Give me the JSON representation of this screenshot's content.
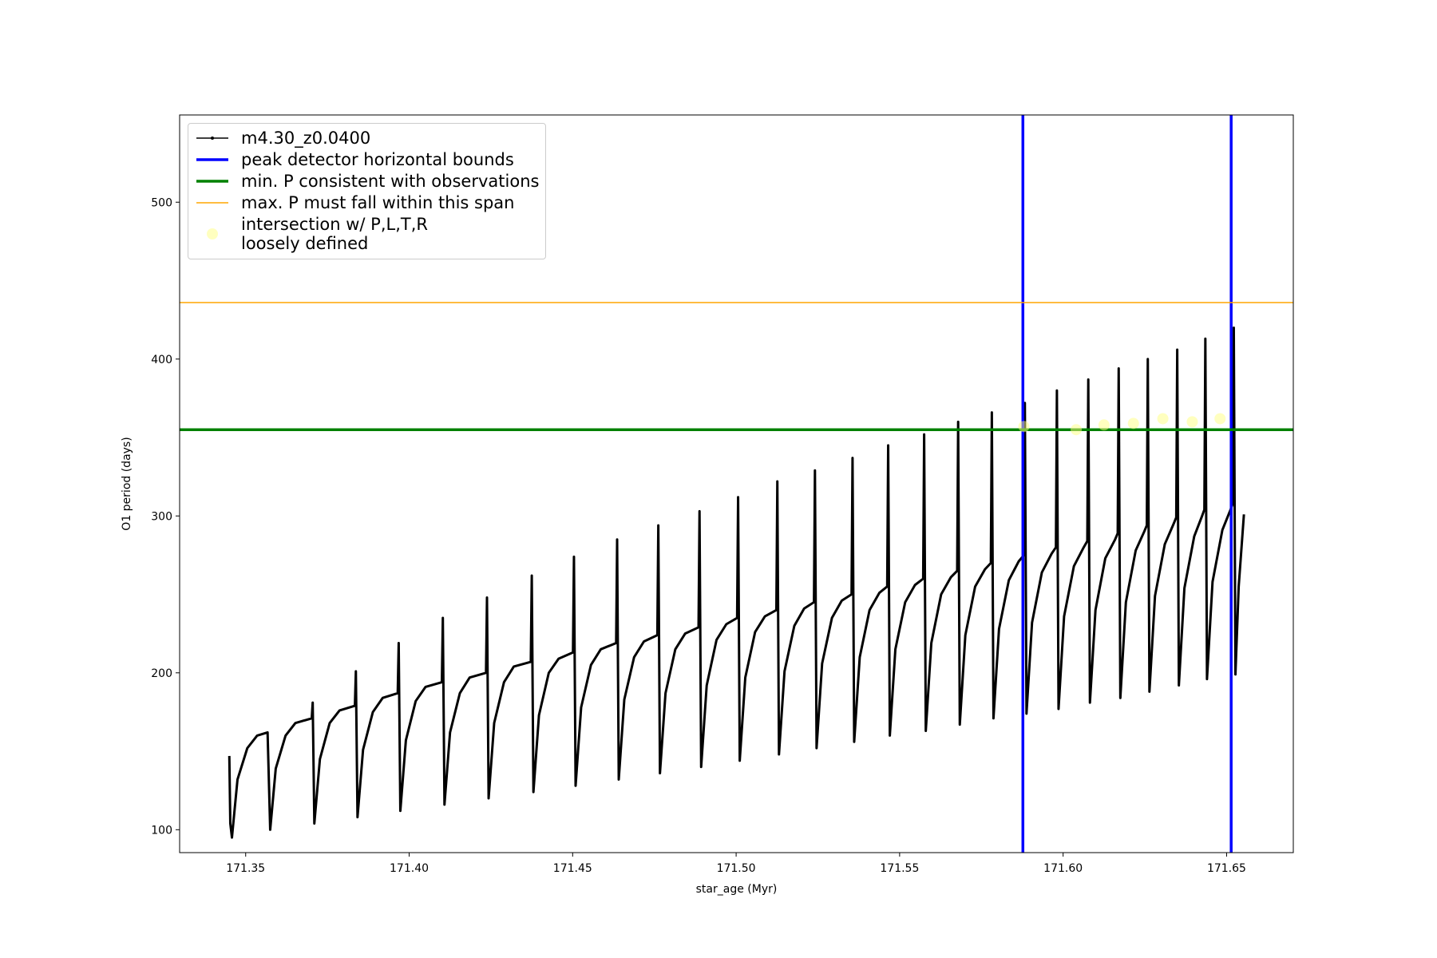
{
  "chart_data": {
    "type": "line",
    "xlabel": "star_age (Myr)",
    "ylabel": "O1 period (days)",
    "xlim": [
      171.3298,
      171.6704
    ],
    "ylim": [
      85.4,
      555.6
    ],
    "xticks": [
      171.35,
      {
        "value": 171.4,
        "label": "171.40"
      },
      171.45,
      {
        "value": 171.5,
        "label": "171.50"
      },
      171.55,
      {
        "value": 171.6,
        "label": "171.60"
      },
      171.65
    ],
    "yticks": [
      100,
      200,
      300,
      400,
      500
    ],
    "legend": "upper left",
    "series": [
      {
        "name": "m4.30_z0.0400",
        "kind": "line",
        "color": "#000000",
        "x": [
          171.345,
          171.3453,
          171.3458,
          171.3475,
          171.3505,
          171.3535,
          171.3567,
          171.3575,
          171.3592,
          171.3622,
          171.3652,
          171.3702,
          171.3705,
          171.371,
          171.3727,
          171.3757,
          171.3787,
          171.3834,
          171.3837,
          171.3842,
          171.3859,
          171.3889,
          171.3919,
          171.3965,
          171.3968,
          171.3973,
          171.399,
          171.402,
          171.405,
          171.41,
          171.4103,
          171.4108,
          171.4125,
          171.4155,
          171.4185,
          171.4235,
          171.4238,
          171.4243,
          171.426,
          171.429,
          171.432,
          171.4372,
          171.4375,
          171.438,
          171.4397,
          171.4427,
          171.4457,
          171.4501,
          171.4504,
          171.4509,
          171.4526,
          171.4556,
          171.4586,
          171.4633,
          171.4636,
          171.4641,
          171.4658,
          171.4688,
          171.4718,
          171.4759,
          171.4762,
          171.4767,
          171.4784,
          171.4814,
          171.4844,
          171.4885,
          171.4888,
          171.4893,
          171.491,
          171.494,
          171.497,
          171.5003,
          171.5006,
          171.5011,
          171.5028,
          171.5058,
          171.5088,
          171.5123,
          171.5126,
          171.5131,
          171.5148,
          171.5178,
          171.5208,
          171.5238,
          171.5241,
          171.5246,
          171.5263,
          171.5293,
          171.5323,
          171.5353,
          171.5356,
          171.5361,
          171.5378,
          171.5408,
          171.5438,
          171.5462,
          171.5465,
          171.547,
          171.5487,
          171.5517,
          171.5547,
          171.5572,
          171.5575,
          171.558,
          171.5597,
          171.5627,
          171.5657,
          171.5676,
          171.5679,
          171.5684,
          171.5701,
          171.5731,
          171.5761,
          171.5779,
          171.5782,
          171.5787,
          171.5804,
          171.5834,
          171.5864,
          171.588,
          171.5883,
          171.5888,
          171.5905,
          171.5935,
          171.5965,
          171.5978,
          171.5981,
          171.5986,
          171.6003,
          171.6033,
          171.6063,
          171.6074,
          171.6077,
          171.6082,
          171.6099,
          171.6129,
          171.6159,
          171.6167,
          171.617,
          171.6175,
          171.6192,
          171.6222,
          171.6248,
          171.6256,
          171.6259,
          171.6264,
          171.6281,
          171.6311,
          171.6338,
          171.6346,
          171.6349,
          171.6354,
          171.6371,
          171.6401,
          171.6425,
          171.6432,
          171.6435,
          171.644,
          171.6457,
          171.6487,
          171.6512,
          171.6519,
          171.6522,
          171.6527,
          171.6537,
          171.6553
        ],
        "values": [
          147,
          104,
          95,
          132,
          152,
          160,
          162,
          100,
          139,
          160,
          168,
          171,
          181,
          104,
          145,
          168,
          176,
          179,
          201,
          108,
          151,
          175,
          184,
          187,
          219,
          112,
          157,
          182,
          191,
          194,
          235,
          116,
          162,
          187,
          197,
          200,
          248,
          120,
          168,
          194,
          204,
          207,
          262,
          124,
          173,
          200,
          209,
          213,
          274,
          128,
          178,
          205,
          215,
          219,
          285,
          132,
          183,
          210,
          220,
          224,
          294,
          136,
          187,
          215,
          225,
          229,
          303,
          140,
          192,
          221,
          231,
          235,
          312,
          144,
          197,
          226,
          236,
          240,
          322,
          148,
          201,
          230,
          241,
          245,
          329,
          152,
          206,
          235,
          246,
          250,
          337,
          156,
          210,
          240,
          251,
          255,
          345,
          160,
          215,
          245,
          256,
          260,
          352,
          163,
          219,
          250,
          261,
          265,
          360,
          167,
          224,
          255,
          266,
          270,
          366,
          171,
          228,
          259,
          271,
          275,
          372,
          174,
          232,
          264,
          276,
          280,
          380,
          177,
          236,
          268,
          280,
          284,
          387,
          181,
          240,
          273,
          285,
          289,
          394,
          184,
          245,
          278,
          290,
          294,
          400,
          188,
          249,
          282,
          295,
          299,
          406,
          192,
          254,
          287,
          300,
          304,
          413,
          196,
          258,
          291,
          304,
          308,
          420,
          199,
          255,
          301
        ]
      },
      {
        "name": "peak detector horizontal bounds",
        "kind": "vline",
        "color": "#0000ff",
        "x": [
          171.5877,
          171.6514
        ]
      },
      {
        "name": "min. P consistent with observations",
        "kind": "hline",
        "color": "#008000",
        "values": [
          355
        ]
      },
      {
        "name": "max. P must fall within this span",
        "kind": "hline",
        "color": "#ffa500",
        "values": [
          436
        ]
      },
      {
        "name": "intersection w/ P,L,T,R\nloosely defined",
        "kind": "scatter",
        "color": "#ffff80",
        "x": [
          171.588,
          171.604,
          171.6125,
          171.6215,
          171.6305,
          171.6395,
          171.648
        ],
        "values": [
          357,
          355,
          358,
          359,
          362,
          360,
          362
        ]
      }
    ]
  }
}
